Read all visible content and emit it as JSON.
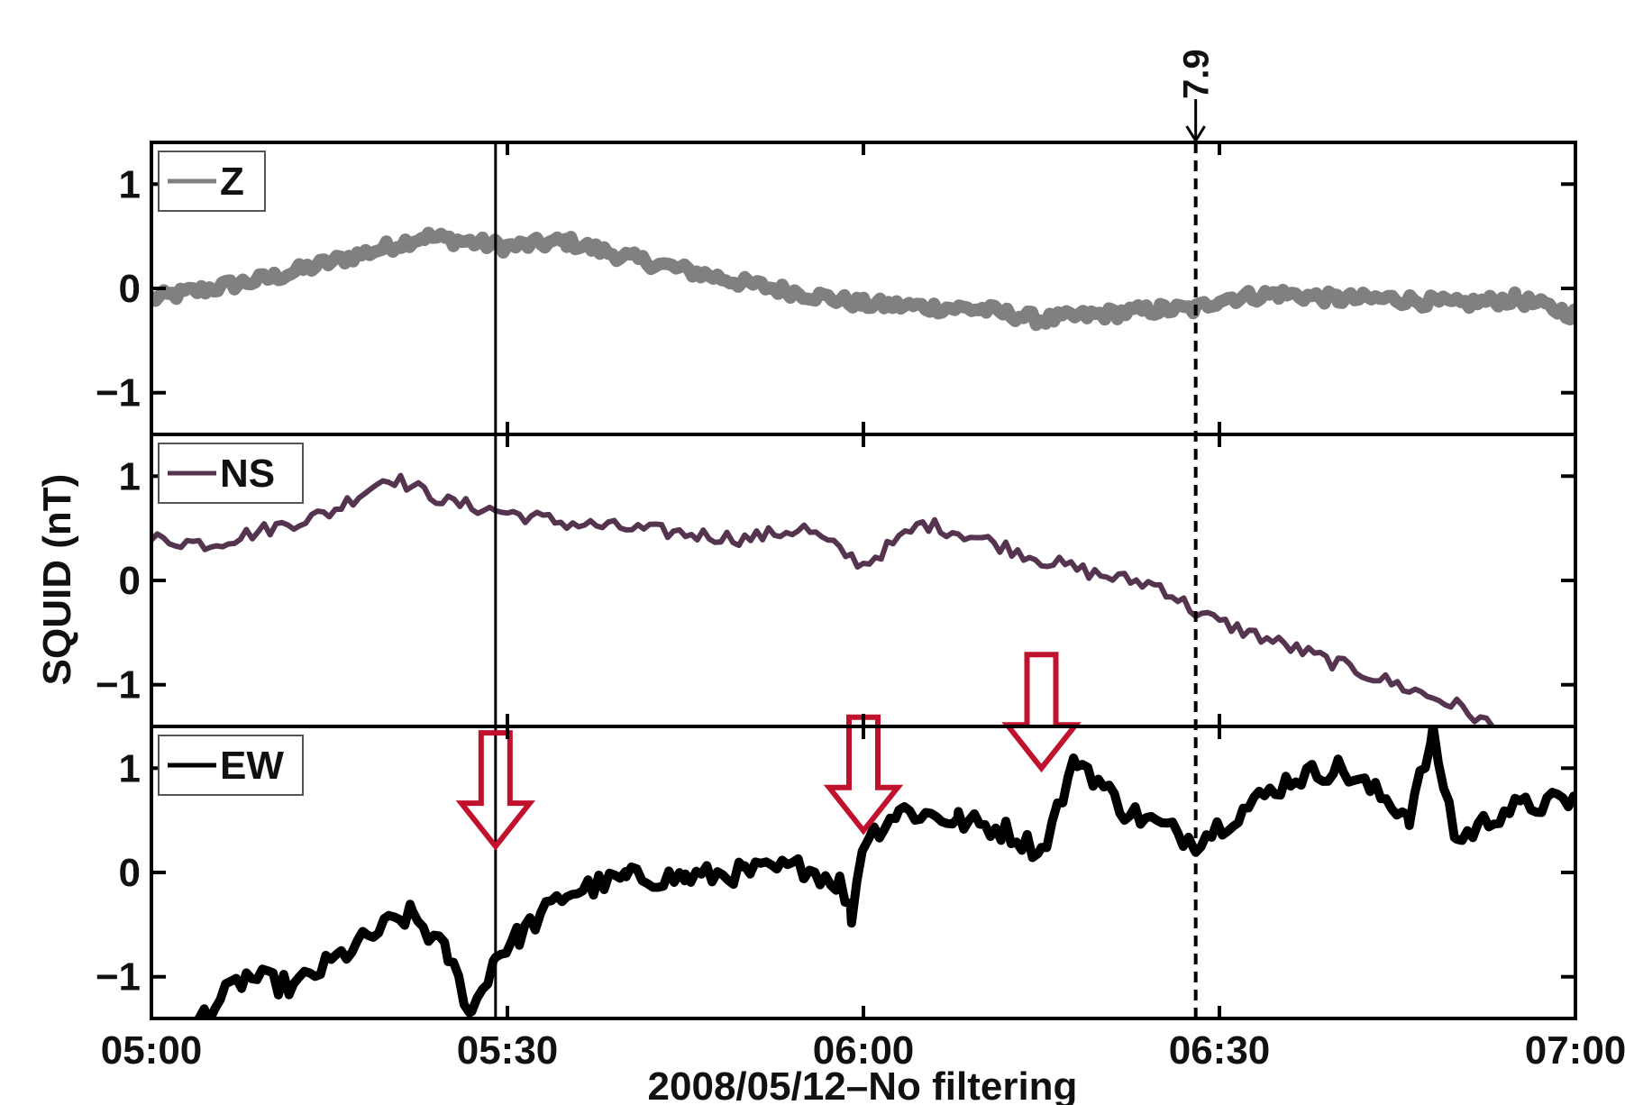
{
  "chart_data": {
    "type": "line",
    "xlabel": "2008/05/12–No filtering",
    "ylabel": "SQUID (nT)",
    "x_ticks": [
      "05:00",
      "05:30",
      "06:00",
      "06:30",
      "07:00"
    ],
    "xlim_minutes": [
      0,
      120
    ],
    "ylim": [
      -1.4,
      1.4
    ],
    "y_ticks": [
      "1",
      "0",
      "−1"
    ],
    "y_tick_values": [
      1,
      0,
      -1
    ],
    "grid": false,
    "legend_placement": "top-left",
    "solid_vertical_line_minutes": 29,
    "dashed_marker": {
      "label": "7.9",
      "x_minutes": 88
    },
    "panels": [
      {
        "name": "Z",
        "color": "#808080",
        "x_minutes": [
          0,
          10,
          20,
          23,
          30,
          35,
          40,
          50,
          60,
          70,
          75,
          80,
          85,
          88,
          90,
          95,
          100,
          105,
          110,
          115,
          120
        ],
        "values": [
          -0.1,
          0.1,
          0.4,
          0.5,
          0.4,
          0.45,
          0.3,
          0.05,
          -0.15,
          -0.2,
          -0.3,
          -0.25,
          -0.2,
          -0.2,
          -0.1,
          -0.05,
          -0.1,
          -0.1,
          -0.15,
          -0.1,
          -0.25
        ]
      },
      {
        "name": "NS",
        "color": "#55344f",
        "x_minutes": [
          0,
          5,
          10,
          15,
          20,
          25,
          30,
          35,
          40,
          45,
          50,
          55,
          60,
          65,
          70,
          75,
          80,
          85,
          88,
          90,
          95,
          100,
          105,
          110,
          113
        ],
        "values": [
          0.4,
          0.35,
          0.5,
          0.65,
          1.0,
          0.75,
          0.65,
          0.55,
          0.5,
          0.45,
          0.4,
          0.5,
          0.15,
          0.55,
          0.4,
          0.2,
          0.05,
          -0.05,
          -0.3,
          -0.4,
          -0.6,
          -0.8,
          -1.0,
          -1.2,
          -1.4
        ]
      },
      {
        "name": "EW",
        "color": "#000000",
        "x_minutes": [
          4,
          8,
          12,
          16,
          20,
          22,
          25,
          27,
          29,
          31,
          35,
          40,
          45,
          50,
          55,
          58,
          59,
          60,
          63,
          68,
          72,
          75,
          78,
          82,
          88,
          92,
          96,
          100,
          106,
          108,
          110,
          114,
          120
        ],
        "values": [
          -1.4,
          -1.0,
          -1.1,
          -0.8,
          -0.5,
          -0.4,
          -0.8,
          -1.35,
          -0.8,
          -0.6,
          -0.2,
          -0.05,
          -0.05,
          0.0,
          0.05,
          -0.1,
          -0.4,
          0.3,
          0.6,
          0.5,
          0.4,
          0.2,
          1.1,
          0.6,
          0.3,
          0.6,
          0.9,
          1.0,
          0.55,
          1.3,
          0.3,
          0.6,
          0.7
        ]
      }
    ],
    "arrows": [
      {
        "x_minutes": 29,
        "y_value": 0.25,
        "color": "#c0112d"
      },
      {
        "x_minutes": 60,
        "y_value": 0.4,
        "color": "#c0112d"
      },
      {
        "x_minutes": 75,
        "y_value": 1.0,
        "color": "#c0112d"
      }
    ]
  }
}
